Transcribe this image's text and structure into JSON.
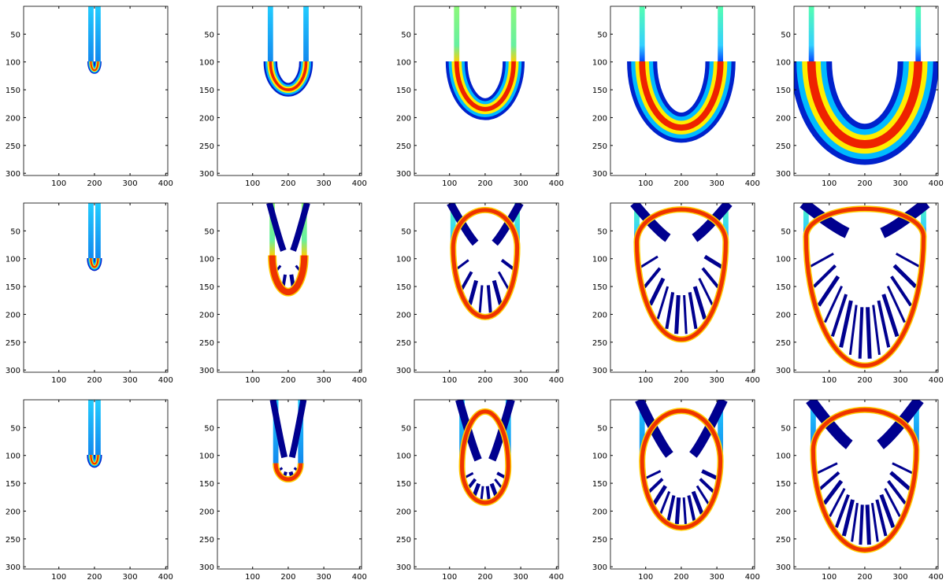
{
  "chart_data": {
    "type": "image",
    "xlim": [
      1,
      406
    ],
    "ylim": [
      0,
      304
    ],
    "xticks": [
      100,
      200,
      300,
      400
    ],
    "yticks": [
      50,
      100,
      150,
      200,
      250,
      300
    ]
  }
}
